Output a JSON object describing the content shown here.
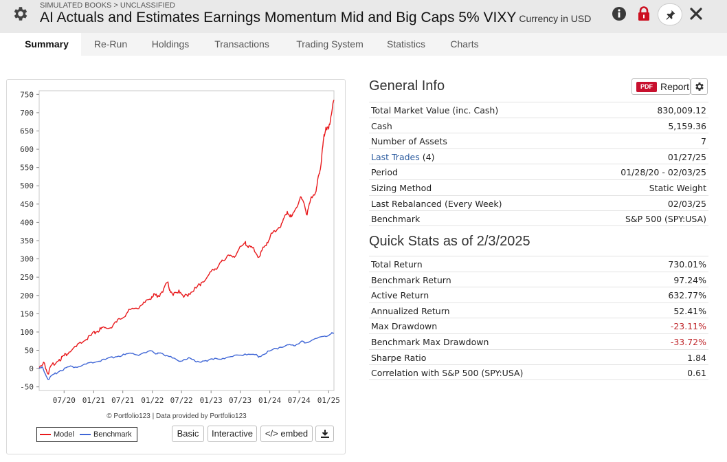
{
  "header": {
    "breadcrumb": "SIMULATED BOOKS > UNCLASSIFIED",
    "title": "AI Actuals and Estimates Earnings Momentum Mid and Big Caps 5% VIXY",
    "currency": "Currency in USD"
  },
  "tabs": [
    "Summary",
    "Re-Run",
    "Holdings",
    "Transactions",
    "Trading System",
    "Statistics",
    "Charts"
  ],
  "chart": {
    "credit": "© Portfolio123 | Data provided by Portfolio123",
    "legend": {
      "model": "Model",
      "benchmark": "Benchmark"
    },
    "buttons": {
      "basic": "Basic",
      "interactive": "Interactive",
      "embed": "</> embed"
    }
  },
  "chart_data": {
    "type": "line",
    "title": "",
    "xlabel": "",
    "ylabel": "",
    "ylim": [
      -60,
      760
    ],
    "yticks": [
      750,
      700,
      650,
      600,
      550,
      500,
      450,
      400,
      350,
      300,
      250,
      200,
      150,
      100,
      50,
      0,
      -50
    ],
    "xlim": [
      "2020-01-28",
      "2025-02-03"
    ],
    "xticks": [
      "07/20",
      "01/21",
      "07/21",
      "01/22",
      "07/22",
      "01/23",
      "07/23",
      "01/24",
      "07/24",
      "01/25"
    ],
    "grid": false,
    "legend_position": "bottom-left",
    "colors": {
      "model": "#e8191c",
      "benchmark": "#3f66d6"
    },
    "series": [
      {
        "name": "Model",
        "x": [
          "2020-01-28",
          "2020-03-01",
          "2020-03-23",
          "2020-04-15",
          "2020-06-01",
          "2020-07-01",
          "2020-08-01",
          "2020-09-15",
          "2020-11-01",
          "2020-12-15",
          "2021-01-15",
          "2021-02-15",
          "2021-03-15",
          "2021-05-01",
          "2021-06-15",
          "2021-08-01",
          "2021-09-15",
          "2021-11-01",
          "2021-12-15",
          "2022-01-10",
          "2022-02-01",
          "2022-03-01",
          "2022-04-05",
          "2022-04-20",
          "2022-05-10",
          "2022-06-15",
          "2022-07-15",
          "2022-08-15",
          "2022-09-30",
          "2022-11-01",
          "2022-12-15",
          "2023-01-15",
          "2023-02-15",
          "2023-03-15",
          "2023-04-15",
          "2023-05-15",
          "2023-06-15",
          "2023-07-31",
          "2023-08-15",
          "2023-09-15",
          "2023-10-27",
          "2023-11-15",
          "2023-12-15",
          "2024-01-15",
          "2024-02-15",
          "2024-03-20",
          "2024-04-19",
          "2024-05-15",
          "2024-06-15",
          "2024-07-10",
          "2024-08-05",
          "2024-08-20",
          "2024-09-15",
          "2024-10-15",
          "2024-11-01",
          "2024-11-15",
          "2024-12-01",
          "2024-12-15",
          "2025-01-01",
          "2025-01-15",
          "2025-02-03"
        ],
        "y": [
          0,
          15,
          -15,
          10,
          25,
          35,
          45,
          60,
          75,
          90,
          100,
          108,
          112,
          118,
          135,
          155,
          165,
          175,
          190,
          205,
          195,
          210,
          235,
          215,
          200,
          215,
          195,
          205,
          220,
          235,
          255,
          270,
          280,
          295,
          310,
          305,
          320,
          345,
          335,
          330,
          305,
          325,
          345,
          370,
          380,
          400,
          430,
          415,
          440,
          470,
          445,
          420,
          470,
          485,
          530,
          560,
          630,
          660,
          655,
          690,
          735
        ]
      },
      {
        "name": "Benchmark",
        "x": [
          "2020-01-28",
          "2020-02-19",
          "2020-03-23",
          "2020-04-30",
          "2020-06-08",
          "2020-07-31",
          "2020-09-30",
          "2020-11-15",
          "2021-01-15",
          "2021-03-15",
          "2021-05-15",
          "2021-07-15",
          "2021-09-01",
          "2021-10-15",
          "2021-12-31",
          "2022-01-31",
          "2022-03-01",
          "2022-04-15",
          "2022-06-16",
          "2022-08-15",
          "2022-09-30",
          "2022-11-30",
          "2023-01-15",
          "2023-03-15",
          "2023-05-15",
          "2023-07-31",
          "2023-09-30",
          "2023-10-27",
          "2023-12-31",
          "2024-02-29",
          "2024-04-19",
          "2024-05-31",
          "2024-07-16",
          "2024-08-05",
          "2024-09-30",
          "2024-11-30",
          "2025-01-15",
          "2025-02-03"
        ],
        "y": [
          0,
          3,
          -30,
          -15,
          -5,
          5,
          5,
          12,
          18,
          25,
          32,
          38,
          42,
          38,
          48,
          40,
          42,
          33,
          20,
          30,
          18,
          22,
          25,
          28,
          33,
          40,
          38,
          33,
          48,
          58,
          65,
          62,
          75,
          70,
          80,
          88,
          95,
          97
        ]
      }
    ]
  },
  "general_info": {
    "title": "General Info",
    "report_label": "Report",
    "pdf_badge": "PDF",
    "rows": [
      {
        "label": "Total Market Value (inc. Cash)",
        "value": "830,009.12"
      },
      {
        "label": "Cash",
        "value": "5,159.36"
      },
      {
        "label": "Number of Assets",
        "value": "7"
      },
      {
        "label": "Last Trades",
        "label_suffix": "(4)",
        "value": "01/27/25"
      },
      {
        "label": "Period",
        "value": "01/28/20 - 02/03/25"
      },
      {
        "label": "Sizing Method",
        "value": "Static Weight"
      },
      {
        "label": "Last Rebalanced (Every Week)",
        "value": "02/03/25"
      },
      {
        "label": "Benchmark",
        "value": "S&P 500 (SPY:USA)"
      }
    ]
  },
  "quick_stats": {
    "title": "Quick Stats as of 2/3/2025",
    "rows": [
      {
        "label": "Total Return",
        "value": "730.01%"
      },
      {
        "label": "Benchmark Return",
        "value": "97.24%"
      },
      {
        "label": "Active Return",
        "value": "632.77%"
      },
      {
        "label": "Annualized Return",
        "value": "52.41%"
      },
      {
        "label": "Max Drawdown",
        "value": "-23.11%"
      },
      {
        "label": "Benchmark Max Drawdown",
        "value": "-33.72%"
      },
      {
        "label": "Sharpe Ratio",
        "value": "1.84"
      },
      {
        "label": "Correlation with S&P 500 (SPY:USA)",
        "value": "0.61"
      }
    ]
  }
}
